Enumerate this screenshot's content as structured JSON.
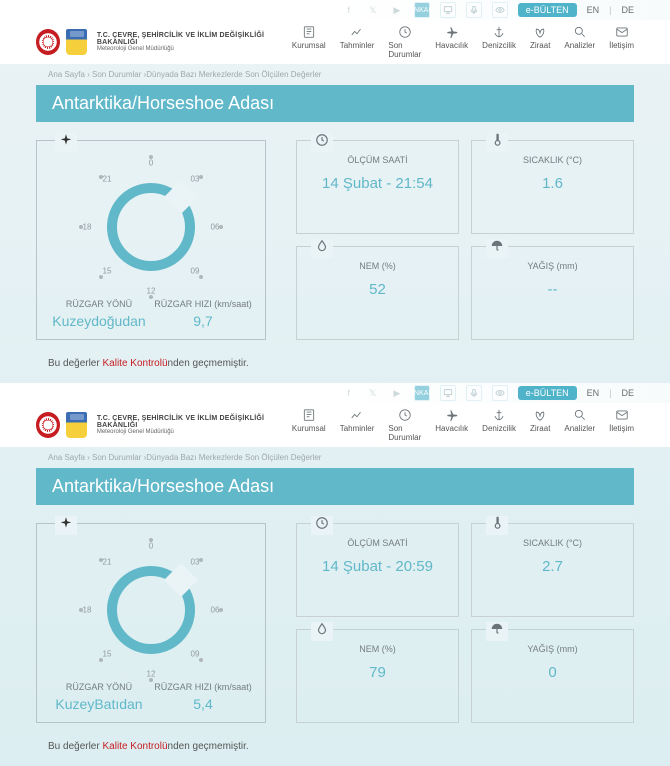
{
  "top": {
    "ebulten": "e-BÜLTEN",
    "lang_en": "EN",
    "lang_de": "DE",
    "highlight": "ANKARA"
  },
  "org": {
    "line1": "T.C. ÇEVRE, ŞEHİRCİLİK VE İKLİM DEĞİŞİKLİĞİ BAKANLIĞI",
    "line2": "Meteoroloji Genel Müdürlüğü"
  },
  "nav": [
    {
      "label": "Kurumsal"
    },
    {
      "label": "Tahminler"
    },
    {
      "label": "Son Durumlar"
    },
    {
      "label": "Havacılık"
    },
    {
      "label": "Denizcilik"
    },
    {
      "label": "Ziraat"
    },
    {
      "label": "Analizler"
    },
    {
      "label": "İletişim"
    }
  ],
  "breadcrumb": "Ana Sayfa › Son Durumlar ›Dünyada Bazı Merkezlerde Son Ölçülen Değerler",
  "title": "Antarktika/Horseshoe Adası",
  "dial_ticks": [
    "0",
    "03",
    "06",
    "09",
    "12",
    "15",
    "18",
    "21"
  ],
  "wind": {
    "dir_label": "RÜZGAR YÖNÜ",
    "speed_label": "RÜZGAR HIZI (km/saat)"
  },
  "cards": {
    "time_label": "ÖLÇÜM SAATİ",
    "temp_label": "SICAKLIK (°C)",
    "hum_label": "NEM (%)",
    "precip_label": "YAĞIŞ (mm)"
  },
  "footer": {
    "pre": "Bu değerler ",
    "kk": "Kalite Kontrolü",
    "post": "nden geçmemiştir."
  },
  "snap": [
    {
      "time": "14 Şubat - 21:54",
      "temp": "1.6",
      "hum": "52",
      "precip": "--",
      "wind_dir": "Kuzeydoğudan",
      "wind_speed": "9,7"
    },
    {
      "time": "14 Şubat - 20:59",
      "temp": "2.7",
      "hum": "79",
      "precip": "0",
      "wind_dir": "KuzeyBatıdan",
      "wind_speed": "5,4"
    }
  ],
  "colors": {
    "accent": "#60b8c9",
    "text_muted": "#747d80",
    "border": "#c7d0d3",
    "brand_red": "#c61d23"
  }
}
